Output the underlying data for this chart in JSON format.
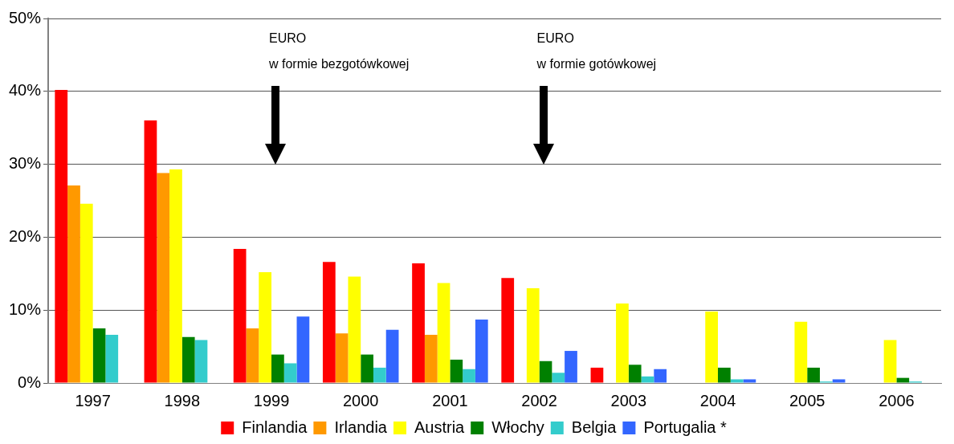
{
  "chart_data": {
    "type": "bar",
    "categories": [
      "1997",
      "1998",
      "1999",
      "2000",
      "2001",
      "2002",
      "2003",
      "2004",
      "2005",
      "2006"
    ],
    "series": [
      {
        "name": "Finlandia",
        "color": "#ff0000",
        "values": [
          40.2,
          36,
          18.4,
          16.6,
          16.4,
          14.4,
          2.1,
          null,
          null,
          null
        ]
      },
      {
        "name": "Irlandia",
        "color": "#ff9900",
        "values": [
          27.1,
          28.8,
          7.5,
          6.8,
          6.6,
          null,
          null,
          null,
          null,
          null
        ]
      },
      {
        "name": "Austria",
        "color": "#ffff00",
        "values": [
          24.6,
          29.3,
          15.2,
          14.6,
          13.7,
          13.0,
          10.9,
          9.8,
          8.4,
          5.9
        ]
      },
      {
        "name": "Włochy",
        "color": "#008000",
        "values": [
          7.5,
          6.3,
          3.9,
          3.9,
          3.2,
          3.0,
          2.5,
          2.1,
          2.1,
          0.7
        ]
      },
      {
        "name": "Belgia",
        "color": "#33cccc",
        "values": [
          6.6,
          5.9,
          2.7,
          2.1,
          1.9,
          1.4,
          0.9,
          0.5,
          0.2,
          0.2
        ]
      },
      {
        "name": "Portugalia *",
        "color": "#3366ff",
        "values": [
          null,
          null,
          9.1,
          7.3,
          8.7,
          4.4,
          1.9,
          0.5,
          0.5,
          null
        ]
      }
    ],
    "ylim": [
      0,
      50
    ],
    "yticks": [
      {
        "value": 0,
        "label": "0%"
      },
      {
        "value": 10,
        "label": "10%"
      },
      {
        "value": 20,
        "label": "20%"
      },
      {
        "value": 30,
        "label": "30%"
      },
      {
        "value": 40,
        "label": "40%"
      },
      {
        "value": 50,
        "label": "50%"
      }
    ],
    "grid": "y",
    "legend": "bottom",
    "annotations": [
      "EURO\nw formie bezgotówkowej",
      "EURO\nw formie gotówkowej"
    ]
  }
}
